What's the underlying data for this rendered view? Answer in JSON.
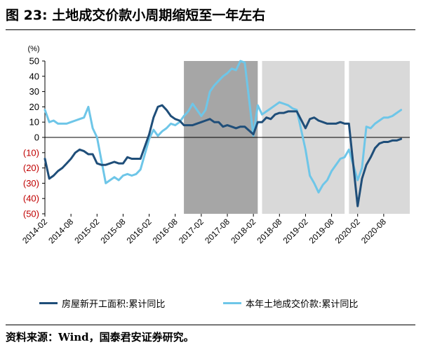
{
  "title": "图 23: 土地成交价款小周期缩短至一年左右",
  "source": "资料来源：Wind，国泰君安证券研究。",
  "colors": {
    "dark_series": "#1f4e79",
    "light_series": "#6ec6e8",
    "negative_tick": "#c00000",
    "shade_dark": "#a6a6a6",
    "shade_light": "#d9d9d9"
  },
  "chart_data": {
    "type": "line",
    "unit_label": "(%)",
    "ylim": [
      -50,
      50
    ],
    "y_ticks": [
      50,
      40,
      30,
      20,
      10,
      0,
      -10,
      -20,
      -30,
      -40,
      -50
    ],
    "y_tick_labels": [
      "50",
      "40",
      "30",
      "20",
      "10",
      "0",
      "(10)",
      "(20)",
      "(30)",
      "(40)",
      "(50)"
    ],
    "x_start": "2014-02",
    "x_end": "2021-02",
    "x_tick_labels": [
      "2014-02",
      "2014-08",
      "2015-02",
      "2015-08",
      "2016-02",
      "2016-08",
      "2017-02",
      "2017-08",
      "2018-02",
      "2018-08",
      "2019-02",
      "2019-08",
      "2020-02",
      "2020-08"
    ],
    "shaded_periods": [
      {
        "start": "2016-10",
        "end": "2018-03",
        "shade": "dark"
      },
      {
        "start": "2018-04",
        "end": "2019-11",
        "shade": "light"
      },
      {
        "start": "2019-12",
        "end": "2021-02",
        "shade": "light"
      }
    ],
    "series": [
      {
        "name": "房屋新开工面积:累计同比",
        "color_key": "dark_series",
        "points": [
          [
            "2014-02",
            -14
          ],
          [
            "2014-03",
            -27
          ],
          [
            "2014-04",
            -25
          ],
          [
            "2014-05",
            -22
          ],
          [
            "2014-06",
            -20
          ],
          [
            "2014-07",
            -17
          ],
          [
            "2014-08",
            -14
          ],
          [
            "2014-09",
            -10
          ],
          [
            "2014-10",
            -8
          ],
          [
            "2014-11",
            -9
          ],
          [
            "2014-12",
            -11
          ],
          [
            "2015-01",
            -11
          ],
          [
            "2015-02",
            -17
          ],
          [
            "2015-03",
            -18
          ],
          [
            "2015-04",
            -18
          ],
          [
            "2015-05",
            -17
          ],
          [
            "2015-06",
            -16
          ],
          [
            "2015-07",
            -17
          ],
          [
            "2015-08",
            -17
          ],
          [
            "2015-09",
            -13
          ],
          [
            "2015-10",
            -14
          ],
          [
            "2015-11",
            -14
          ],
          [
            "2015-12",
            -14
          ],
          [
            "2016-02",
            2
          ],
          [
            "2016-03",
            13
          ],
          [
            "2016-04",
            20
          ],
          [
            "2016-05",
            21
          ],
          [
            "2016-06",
            18
          ],
          [
            "2016-07",
            14
          ],
          [
            "2016-08",
            12
          ],
          [
            "2016-09",
            11
          ],
          [
            "2016-10",
            8
          ],
          [
            "2016-11",
            8
          ],
          [
            "2016-12",
            8
          ],
          [
            "2017-02",
            10
          ],
          [
            "2017-03",
            11
          ],
          [
            "2017-04",
            12
          ],
          [
            "2017-05",
            10
          ],
          [
            "2017-06",
            10
          ],
          [
            "2017-07",
            7
          ],
          [
            "2017-08",
            8
          ],
          [
            "2017-09",
            7
          ],
          [
            "2017-10",
            6
          ],
          [
            "2017-11",
            7
          ],
          [
            "2017-12",
            7
          ],
          [
            "2018-02",
            2
          ],
          [
            "2018-03",
            10
          ],
          [
            "2018-04",
            10
          ],
          [
            "2018-05",
            13
          ],
          [
            "2018-06",
            12
          ],
          [
            "2018-07",
            15
          ],
          [
            "2018-08",
            16
          ],
          [
            "2018-09",
            16
          ],
          [
            "2018-10",
            17
          ],
          [
            "2018-11",
            17
          ],
          [
            "2018-12",
            17
          ],
          [
            "2019-02",
            6
          ],
          [
            "2019-03",
            12
          ],
          [
            "2019-04",
            13
          ],
          [
            "2019-05",
            11
          ],
          [
            "2019-06",
            10
          ],
          [
            "2019-07",
            9
          ],
          [
            "2019-08",
            9
          ],
          [
            "2019-09",
            9
          ],
          [
            "2019-10",
            10
          ],
          [
            "2019-11",
            9
          ],
          [
            "2019-12",
            9
          ],
          [
            "2020-02",
            -45
          ],
          [
            "2020-03",
            -27
          ],
          [
            "2020-04",
            -18
          ],
          [
            "2020-05",
            -13
          ],
          [
            "2020-06",
            -7
          ],
          [
            "2020-07",
            -4
          ],
          [
            "2020-08",
            -3
          ],
          [
            "2020-09",
            -3
          ],
          [
            "2020-10",
            -2
          ],
          [
            "2020-11",
            -2
          ],
          [
            "2020-12",
            -1
          ]
        ]
      },
      {
        "name": "本年土地成交价款:累计同比",
        "color_key": "light_series",
        "points": [
          [
            "2014-02",
            18
          ],
          [
            "2014-03",
            10
          ],
          [
            "2014-04",
            11
          ],
          [
            "2014-05",
            9
          ],
          [
            "2014-06",
            9
          ],
          [
            "2014-07",
            9
          ],
          [
            "2014-08",
            10
          ],
          [
            "2014-09",
            11
          ],
          [
            "2014-10",
            12
          ],
          [
            "2014-11",
            13
          ],
          [
            "2014-12",
            20
          ],
          [
            "2015-01",
            6
          ],
          [
            "2015-02",
            0
          ],
          [
            "2015-03",
            -15
          ],
          [
            "2015-04",
            -30
          ],
          [
            "2015-05",
            -28
          ],
          [
            "2015-06",
            -26
          ],
          [
            "2015-07",
            -28
          ],
          [
            "2015-08",
            -25
          ],
          [
            "2015-09",
            -24
          ],
          [
            "2015-10",
            -25
          ],
          [
            "2015-11",
            -24
          ],
          [
            "2015-12",
            -21
          ],
          [
            "2016-02",
            -1
          ],
          [
            "2016-03",
            5
          ],
          [
            "2016-04",
            1
          ],
          [
            "2016-05",
            4
          ],
          [
            "2016-06",
            6
          ],
          [
            "2016-07",
            9
          ],
          [
            "2016-08",
            8
          ],
          [
            "2016-09",
            10
          ],
          [
            "2016-10",
            14
          ],
          [
            "2016-11",
            17
          ],
          [
            "2016-12",
            22
          ],
          [
            "2017-02",
            14
          ],
          [
            "2017-03",
            18
          ],
          [
            "2017-04",
            30
          ],
          [
            "2017-05",
            34
          ],
          [
            "2017-06",
            37
          ],
          [
            "2017-07",
            40
          ],
          [
            "2017-08",
            42
          ],
          [
            "2017-09",
            45
          ],
          [
            "2017-10",
            44
          ],
          [
            "2017-11",
            50
          ],
          [
            "2017-12",
            49
          ],
          [
            "2018-02",
            1
          ],
          [
            "2018-03",
            21
          ],
          [
            "2018-04",
            15
          ],
          [
            "2018-05",
            17
          ],
          [
            "2018-06",
            19
          ],
          [
            "2018-07",
            21
          ],
          [
            "2018-08",
            23
          ],
          [
            "2018-09",
            22
          ],
          [
            "2018-10",
            21
          ],
          [
            "2018-11",
            19
          ],
          [
            "2018-12",
            18
          ],
          [
            "2019-02",
            -8
          ],
          [
            "2019-03",
            -25
          ],
          [
            "2019-04",
            -30
          ],
          [
            "2019-05",
            -36
          ],
          [
            "2019-06",
            -31
          ],
          [
            "2019-07",
            -28
          ],
          [
            "2019-08",
            -22
          ],
          [
            "2019-09",
            -18
          ],
          [
            "2019-10",
            -14
          ],
          [
            "2019-11",
            -13
          ],
          [
            "2019-12",
            -8
          ],
          [
            "2020-02",
            -28
          ],
          [
            "2020-03",
            -20
          ],
          [
            "2020-04",
            7
          ],
          [
            "2020-05",
            6
          ],
          [
            "2020-06",
            9
          ],
          [
            "2020-07",
            11
          ],
          [
            "2020-08",
            13
          ],
          [
            "2020-09",
            13
          ],
          [
            "2020-10",
            14
          ],
          [
            "2020-11",
            16
          ],
          [
            "2020-12",
            18
          ]
        ]
      }
    ],
    "legend_position": "bottom"
  }
}
